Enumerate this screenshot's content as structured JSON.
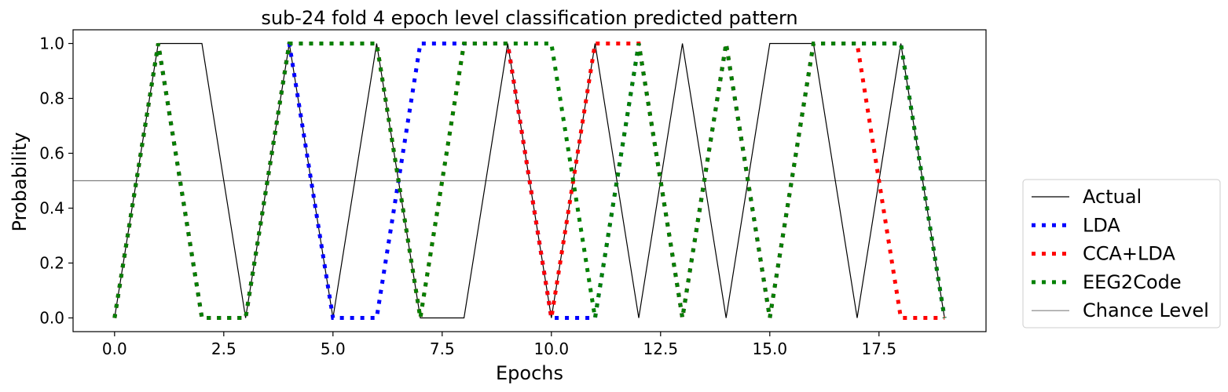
{
  "chart_data": {
    "type": "line",
    "title": "sub-24 fold 4 epoch level classification predicted pattern",
    "xlabel": "Epochs",
    "ylabel": "Probability",
    "xlim": [
      -0.95,
      19.95
    ],
    "ylim": [
      -0.05,
      1.05
    ],
    "xticks": [
      0.0,
      2.5,
      5.0,
      7.5,
      10.0,
      12.5,
      15.0,
      17.5
    ],
    "xtick_labels": [
      "0.0",
      "2.5",
      "5.0",
      "7.5",
      "10.0",
      "12.5",
      "15.0",
      "17.5"
    ],
    "yticks": [
      0.0,
      0.2,
      0.4,
      0.6,
      0.8,
      1.0
    ],
    "ytick_labels": [
      "0.0",
      "0.2",
      "0.4",
      "0.6",
      "0.8",
      "1.0"
    ],
    "grid": false,
    "legend_position": "outside-right",
    "x": [
      0,
      1,
      2,
      3,
      4,
      5,
      6,
      7,
      8,
      9,
      10,
      11,
      12,
      13,
      14,
      15,
      16,
      17,
      18,
      19
    ],
    "series": [
      {
        "name": "Actual",
        "color": "#000000",
        "style": "solid",
        "values": [
          0,
          1,
          1,
          0,
          1,
          0,
          1,
          0,
          0,
          1,
          0,
          1,
          0,
          1,
          0,
          1,
          1,
          0,
          1,
          0
        ]
      },
      {
        "name": "LDA",
        "color": "#0000ff",
        "style": "dotted",
        "values": [
          0,
          1,
          0,
          0,
          1,
          0,
          0,
          1,
          1,
          1,
          0,
          0,
          1,
          0,
          1,
          0,
          1,
          1,
          1,
          0
        ]
      },
      {
        "name": "CCA+LDA",
        "color": "#ff0000",
        "style": "dotted",
        "values": [
          0,
          1,
          0,
          0,
          1,
          1,
          1,
          0,
          1,
          1,
          0,
          1,
          1,
          0,
          1,
          0,
          1,
          1,
          0,
          0
        ]
      },
      {
        "name": "EEG2Code",
        "color": "#008000",
        "style": "dotted",
        "values": [
          0,
          1,
          0,
          0,
          1,
          1,
          1,
          0,
          1,
          1,
          1,
          0,
          1,
          0,
          1,
          0,
          1,
          1,
          1,
          0
        ]
      }
    ],
    "reference_line": {
      "name": "Chance Level",
      "value": 0.5,
      "color": "#808080"
    }
  }
}
